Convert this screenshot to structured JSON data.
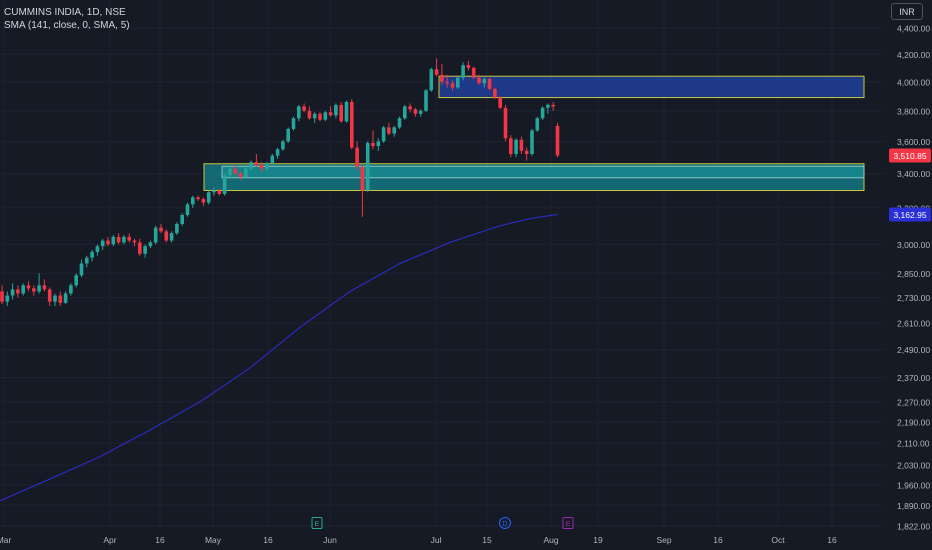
{
  "header": {
    "symbol_line": "CUMMINS INDIA, 1D, NSE",
    "indicator_line": "SMA (141, close, 0, SMA, 5)",
    "currency_button": "INR"
  },
  "colors": {
    "background": "#161a25",
    "grid": "#1f2330",
    "axis_text": "#b2b5be",
    "up_candle": "#26a69a",
    "down_candle": "#f23645",
    "sma_line": "#2a2fd6",
    "supply_zone_fill": "#1f3f9a",
    "demand_zone_fill": "#14838e",
    "zone_border": "#c8c83c",
    "last_price_badge": "#f23645",
    "sma_badge": "#2a2fd6"
  },
  "price_axis": {
    "ticks": [
      "4,400.00",
      "4,200.00",
      "4,000.00",
      "3,800.00",
      "3,600.00",
      "3,400.00",
      "3,200.00",
      "3,000.00",
      "2,850.00",
      "2,730.00",
      "2,610.00",
      "2,490.00",
      "2,370.00",
      "2,270.00",
      "2,190.00",
      "2,110.00",
      "2,030.00",
      "1,960.00",
      "1,890.00",
      "1,822.00"
    ],
    "tick_values": [
      4400,
      4200,
      4000,
      3800,
      3600,
      3400,
      3200,
      3000,
      2850,
      2730,
      2610,
      2490,
      2370,
      2270,
      2190,
      2110,
      2030,
      1960,
      1890,
      1822
    ],
    "scale": "log",
    "last_price_label": "3,510.85",
    "last_price": 3510.85,
    "sma_label": "3,162.95",
    "sma_value": 3162.95
  },
  "time_axis": {
    "labels": [
      "Mar",
      "Apr",
      "16",
      "May",
      "16",
      "Jun",
      "Jul",
      "15",
      "Aug",
      "19",
      "Sep",
      "16",
      "Oct",
      "16"
    ]
  },
  "event_markers": [
    {
      "letter": "E",
      "color": "#26a69a",
      "kind": "earnings"
    },
    {
      "letter": "D",
      "color": "#2962ff",
      "kind": "dividend"
    },
    {
      "letter": "E",
      "color": "#9c27b0",
      "kind": "earnings"
    }
  ],
  "chart_data": {
    "type": "candlestick",
    "y_scale": "log",
    "ylim": [
      1822,
      4400
    ],
    "candles": [
      [
        2760,
        2790,
        2700,
        2710
      ],
      [
        2710,
        2760,
        2690,
        2740
      ],
      [
        2740,
        2800,
        2720,
        2770
      ],
      [
        2770,
        2790,
        2730,
        2750
      ],
      [
        2750,
        2800,
        2740,
        2790
      ],
      [
        2790,
        2810,
        2760,
        2775
      ],
      [
        2775,
        2790,
        2740,
        2760
      ],
      [
        2760,
        2850,
        2750,
        2790
      ],
      [
        2790,
        2820,
        2760,
        2770
      ],
      [
        2770,
        2780,
        2690,
        2710
      ],
      [
        2710,
        2750,
        2690,
        2740
      ],
      [
        2740,
        2760,
        2690,
        2705
      ],
      [
        2705,
        2760,
        2700,
        2750
      ],
      [
        2750,
        2800,
        2740,
        2790
      ],
      [
        2790,
        2850,
        2780,
        2840
      ],
      [
        2840,
        2920,
        2830,
        2900
      ],
      [
        2900,
        2940,
        2880,
        2930
      ],
      [
        2930,
        2970,
        2910,
        2960
      ],
      [
        2960,
        3000,
        2940,
        2990
      ],
      [
        2990,
        3030,
        2970,
        3020
      ],
      [
        3020,
        3040,
        2990,
        3000
      ],
      [
        3000,
        3050,
        2990,
        3040
      ],
      [
        3040,
        3060,
        3000,
        3010
      ],
      [
        3010,
        3050,
        3000,
        3040
      ],
      [
        3040,
        3060,
        3010,
        3020
      ],
      [
        3020,
        3030,
        2990,
        3010
      ],
      [
        3010,
        3030,
        2940,
        2950
      ],
      [
        2950,
        3000,
        2930,
        2990
      ],
      [
        2990,
        3020,
        2980,
        3010
      ],
      [
        3010,
        3100,
        3000,
        3090
      ],
      [
        3090,
        3110,
        3060,
        3070
      ],
      [
        3070,
        3080,
        3010,
        3020
      ],
      [
        3020,
        3070,
        3010,
        3060
      ],
      [
        3060,
        3120,
        3050,
        3110
      ],
      [
        3110,
        3170,
        3100,
        3160
      ],
      [
        3160,
        3230,
        3150,
        3220
      ],
      [
        3220,
        3270,
        3200,
        3260
      ],
      [
        3260,
        3270,
        3240,
        3250
      ],
      [
        3250,
        3260,
        3210,
        3230
      ],
      [
        3230,
        3300,
        3220,
        3290
      ],
      [
        3290,
        3320,
        3270,
        3300
      ],
      [
        3300,
        3310,
        3270,
        3280
      ],
      [
        3280,
        3400,
        3270,
        3390
      ],
      [
        3390,
        3440,
        3370,
        3430
      ],
      [
        3430,
        3450,
        3390,
        3400
      ],
      [
        3400,
        3410,
        3360,
        3380
      ],
      [
        3380,
        3440,
        3370,
        3430
      ],
      [
        3430,
        3480,
        3420,
        3470
      ],
      [
        3470,
        3520,
        3440,
        3450
      ],
      [
        3450,
        3470,
        3410,
        3430
      ],
      [
        3430,
        3470,
        3420,
        3465
      ],
      [
        3465,
        3520,
        3450,
        3510
      ],
      [
        3510,
        3560,
        3490,
        3550
      ],
      [
        3550,
        3610,
        3540,
        3600
      ],
      [
        3600,
        3690,
        3590,
        3680
      ],
      [
        3680,
        3760,
        3670,
        3750
      ],
      [
        3750,
        3840,
        3730,
        3830
      ],
      [
        3830,
        3850,
        3790,
        3800
      ],
      [
        3800,
        3830,
        3740,
        3750
      ],
      [
        3750,
        3790,
        3720,
        3780
      ],
      [
        3780,
        3790,
        3730,
        3740
      ],
      [
        3740,
        3800,
        3730,
        3790
      ],
      [
        3790,
        3830,
        3760,
        3770
      ],
      [
        3770,
        3850,
        3750,
        3840
      ],
      [
        3840,
        3860,
        3720,
        3730
      ],
      [
        3730,
        3870,
        3720,
        3860
      ],
      [
        3860,
        3880,
        3550,
        3560
      ],
      [
        3560,
        3600,
        3420,
        3440
      ],
      [
        3440,
        3450,
        3150,
        3300
      ],
      [
        3300,
        3600,
        3290,
        3590
      ],
      [
        3590,
        3670,
        3550,
        3570
      ],
      [
        3570,
        3620,
        3540,
        3600
      ],
      [
        3600,
        3700,
        3590,
        3690
      ],
      [
        3690,
        3720,
        3640,
        3650
      ],
      [
        3650,
        3700,
        3630,
        3690
      ],
      [
        3690,
        3760,
        3680,
        3750
      ],
      [
        3750,
        3840,
        3740,
        3830
      ],
      [
        3830,
        3850,
        3790,
        3810
      ],
      [
        3810,
        3820,
        3760,
        3780
      ],
      [
        3780,
        3810,
        3760,
        3800
      ],
      [
        3800,
        3950,
        3790,
        3940
      ],
      [
        3940,
        4100,
        3930,
        4090
      ],
      [
        4090,
        4170,
        4040,
        4050
      ],
      [
        4050,
        4130,
        3980,
        4000
      ],
      [
        4000,
        4050,
        3960,
        3990
      ],
      [
        3990,
        4010,
        3940,
        3960
      ],
      [
        3960,
        4040,
        3950,
        4030
      ],
      [
        4030,
        4140,
        4010,
        4120
      ],
      [
        4120,
        4150,
        4080,
        4100
      ],
      [
        4100,
        4110,
        4020,
        4030
      ],
      [
        4030,
        4050,
        3980,
        3990
      ],
      [
        3990,
        4030,
        3960,
        4020
      ],
      [
        4020,
        4030,
        3940,
        3950
      ],
      [
        3950,
        3960,
        3880,
        3890
      ],
      [
        3890,
        3900,
        3810,
        3820
      ],
      [
        3820,
        3840,
        3600,
        3620
      ],
      [
        3620,
        3640,
        3500,
        3520
      ],
      [
        3520,
        3620,
        3500,
        3610
      ],
      [
        3610,
        3630,
        3520,
        3540
      ],
      [
        3540,
        3560,
        3480,
        3520
      ],
      [
        3520,
        3680,
        3510,
        3670
      ],
      [
        3670,
        3760,
        3660,
        3750
      ],
      [
        3750,
        3830,
        3740,
        3820
      ],
      [
        3820,
        3850,
        3780,
        3840
      ],
      [
        3840,
        3860,
        3800,
        3830
      ],
      [
        3700,
        3720,
        3500,
        3511
      ]
    ],
    "sma_141": [
      [
        0,
        1905
      ],
      [
        50,
        1980
      ],
      [
        100,
        2060
      ],
      [
        150,
        2160
      ],
      [
        200,
        2270
      ],
      [
        250,
        2410
      ],
      [
        300,
        2590
      ],
      [
        350,
        2760
      ],
      [
        400,
        2900
      ],
      [
        450,
        3010
      ],
      [
        500,
        3100
      ],
      [
        530,
        3140
      ],
      [
        558,
        3163
      ]
    ],
    "zones": [
      {
        "name": "supply zone",
        "top": 4040,
        "bottom": 3890
      },
      {
        "name": "demand zone",
        "top": 3460,
        "bottom": 3300
      }
    ]
  }
}
